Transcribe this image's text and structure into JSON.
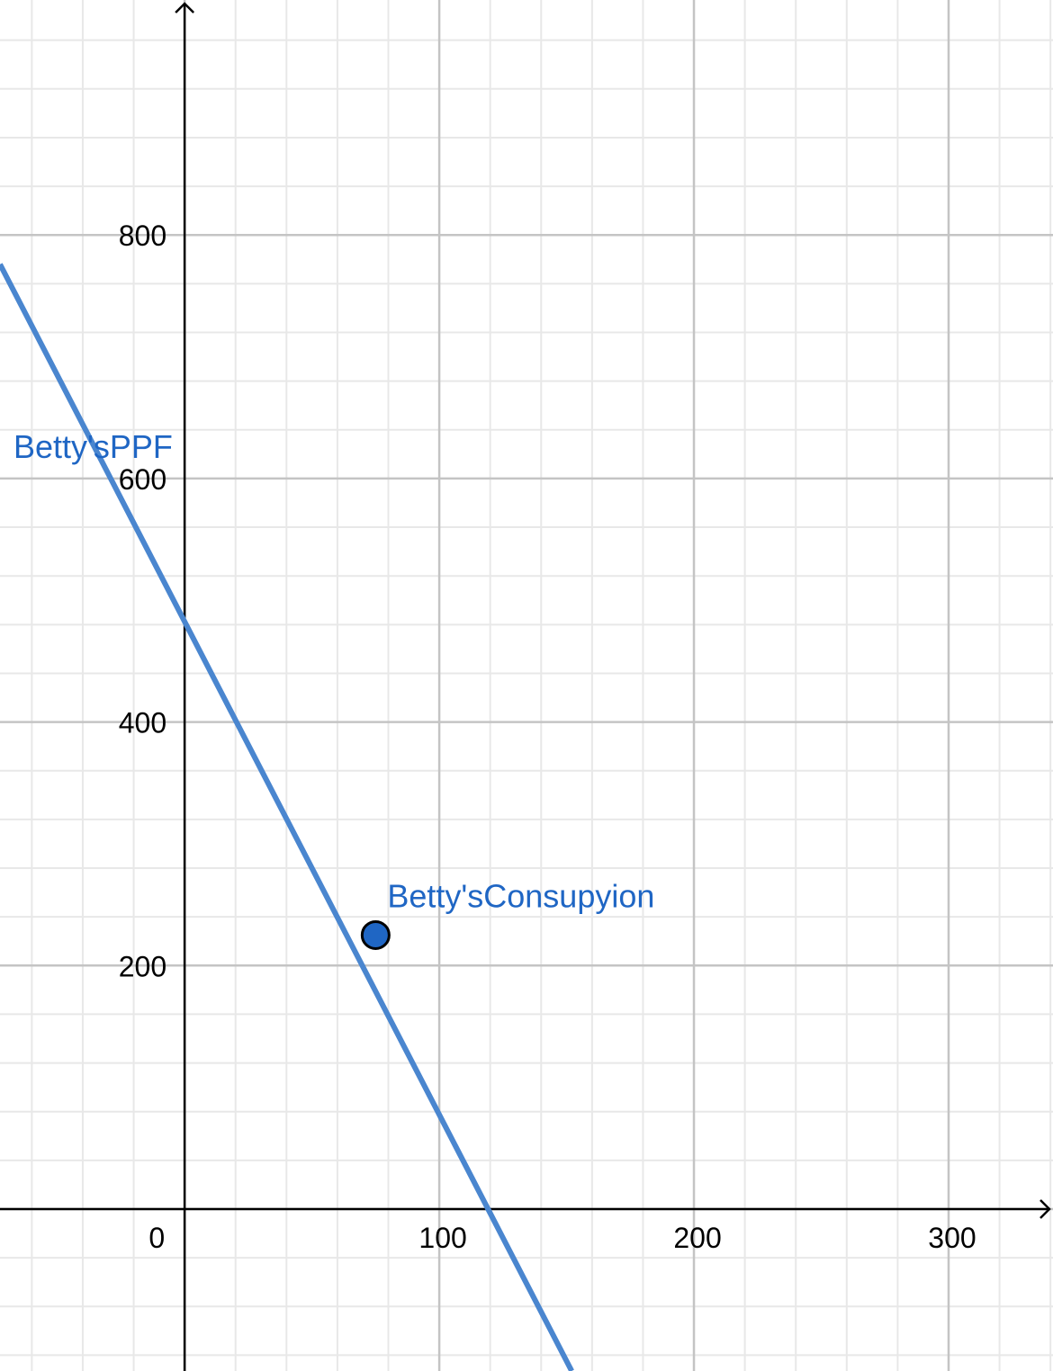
{
  "chart_data": {
    "type": "line",
    "title": "",
    "xlabel": "",
    "ylabel": "",
    "xlim": [
      -72.5,
      341
    ],
    "ylim": [
      -133,
      993
    ],
    "x_ticks": [
      "0",
      "100",
      "200",
      "300"
    ],
    "y_ticks": [
      "200",
      "400",
      "600",
      "800"
    ],
    "origin_label": "0",
    "grid": true,
    "grid_major_x_step": 100,
    "grid_major_y_step": 200,
    "grid_minor_x_step": 20,
    "grid_minor_y_step": 40,
    "series": [
      {
        "name": "Betty'sPPF",
        "kind": "line",
        "color": "#4a86cf",
        "points": [
          [
            -72.5,
            776
          ],
          [
            152,
            -133
          ]
        ]
      },
      {
        "name": "Betty'sConsupyion",
        "kind": "point",
        "color": "#1f66c4",
        "x": 75,
        "y": 225
      }
    ],
    "colors": {
      "axis": "#000000",
      "grid_major": "#c4c4c4",
      "grid_minor": "#e8e8e8",
      "label": "#1f66c4"
    }
  }
}
